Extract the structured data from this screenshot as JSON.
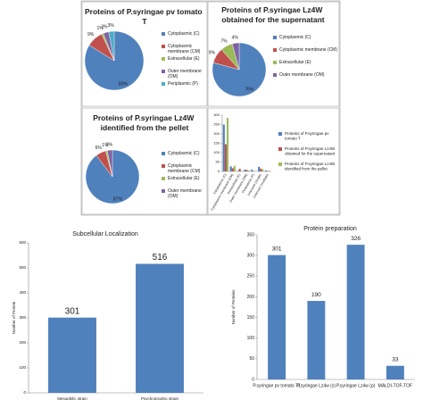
{
  "chart_data": [
    {
      "type": "pie",
      "title": "Proteins of P.syringae pv tomato T",
      "categories": [
        "Cytoplasmic (C)",
        "Cytoplasmic membrane (CM)",
        "Extracellular (E)",
        "Outer membrane (OM)",
        "Periplasmic (P)"
      ],
      "values": [
        83,
        9,
        1,
        3,
        3
      ],
      "value_labels": [
        "83%",
        "9%",
        "1%",
        "3%",
        "3%"
      ],
      "colors": [
        "#4f81bd",
        "#c0504d",
        "#9bbb59",
        "#8064a2",
        "#4bacc6"
      ]
    },
    {
      "type": "pie",
      "title": "Proteins of P.syringae Lz4W obtained for the supernatant",
      "categories": [
        "Cytoplasmic (C)",
        "Cytoplasmic membrane (CM)",
        "Extracellular (E)",
        "Outer membrane (OM)"
      ],
      "values": [
        76,
        9,
        7,
        4
      ],
      "value_labels": [
        "76%",
        "9%",
        "7%",
        "4%"
      ],
      "colors": [
        "#4f81bd",
        "#c0504d",
        "#9bbb59",
        "#8064a2"
      ]
    },
    {
      "type": "pie",
      "title": "Proteins of P.syringae Lz4W identified from the pellet",
      "categories": [
        "Cytoplasmic (C)",
        "Cytoplasmic membrane (CM)",
        "Extracellular (E)",
        "Outer membrane (OM)"
      ],
      "values": [
        87,
        6,
        1,
        3
      ],
      "value_labels": [
        "87%",
        "6%",
        "1%",
        "3%"
      ],
      "colors": [
        "#4f81bd",
        "#c0504d",
        "#9bbb59",
        "#8064a2"
      ]
    },
    {
      "type": "bar",
      "categories": [
        "Cytoplasmic (C)",
        "Cytoplasmic membrane (CM)",
        "Extracellular (E)",
        "Outer membrane (OM)",
        "Periplasmic (P)",
        "Unknown (single)",
        "Unknown (multiple)"
      ],
      "series": [
        {
          "name": "Proteins of P.syringae pv tomato T",
          "color": "#4f81bd",
          "values": [
            250,
            27,
            3,
            10,
            10,
            25,
            5
          ]
        },
        {
          "name": "Proteins of P.syringae Lz4W obtained for the supernatant",
          "color": "#c0504d",
          "values": [
            145,
            17,
            14,
            7,
            1,
            15,
            2
          ]
        },
        {
          "name": "Proteins of P.syringae Lz4W identified from the pellet",
          "color": "#9bbb59",
          "values": [
            285,
            30,
            2,
            5,
            2,
            12,
            3
          ]
        }
      ],
      "ylim": [
        0,
        300
      ],
      "yticks": [
        0,
        50,
        100,
        150,
        200,
        250,
        300
      ],
      "legend": "right",
      "grid": false
    },
    {
      "type": "bar",
      "title": "Subcellular Localization",
      "ylabel": "Number of Protein",
      "categories": [
        "Mesophilic strain",
        "Psychrotrophic strain"
      ],
      "values": [
        301,
        516
      ],
      "color": "#4f81bd",
      "ylim": [
        0,
        600
      ],
      "yticks": [
        0,
        100,
        200,
        300,
        400,
        500,
        600
      ],
      "data_labels": true,
      "grid": false
    },
    {
      "type": "bar",
      "title": "Protein preparation",
      "ylabel": "Number of Proteins",
      "categories": [
        "P.syringae pv tomato T1",
        "P.syringae Lz4w (s)",
        "P.syringae Lz4w (p)",
        "MALDI-TOF-TOF"
      ],
      "values": [
        301,
        190,
        326,
        33
      ],
      "color": "#4f81bd",
      "ylim": [
        0,
        350
      ],
      "yticks": [
        0,
        50,
        100,
        150,
        200,
        250,
        300,
        350
      ],
      "data_labels": true,
      "grid": false
    }
  ]
}
